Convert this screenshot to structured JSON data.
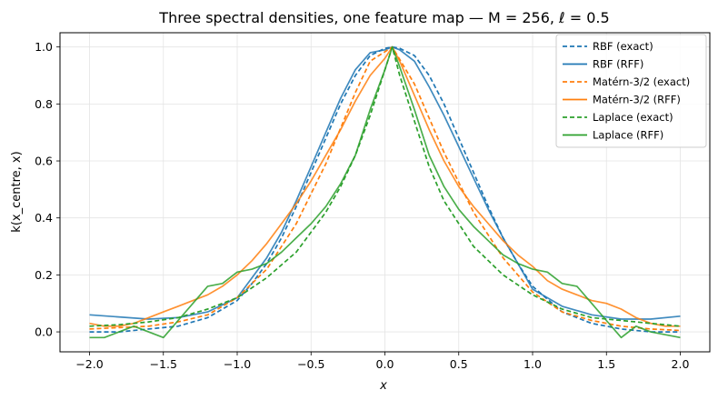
{
  "chart_data": {
    "type": "line",
    "title": "Three spectral densities, one feature map — M = 256, ℓ = 0.5",
    "xlabel": "x",
    "ylabel": "k(x_centre, x)",
    "xlim": [
      -2.2,
      2.2
    ],
    "ylim": [
      -0.07,
      1.05
    ],
    "xticks": [
      -2.0,
      -1.5,
      -1.0,
      -0.5,
      0.0,
      0.5,
      1.0,
      1.5,
      2.0
    ],
    "xtick_labels": [
      "−2.0",
      "−1.5",
      "−1.0",
      "−0.5",
      "0.0",
      "0.5",
      "1.0",
      "1.5",
      "2.0"
    ],
    "yticks": [
      0.0,
      0.2,
      0.4,
      0.6,
      0.8,
      1.0
    ],
    "ytick_labels": [
      "0.0",
      "0.2",
      "0.4",
      "0.6",
      "0.8",
      "1.0"
    ],
    "grid": true,
    "legend_position": "top-right",
    "series": [
      {
        "name": "RBF (exact)",
        "color": "#1f77b4",
        "dash": true,
        "x": [
          -2.0,
          -1.8,
          -1.6,
          -1.4,
          -1.2,
          -1.0,
          -0.9,
          -0.8,
          -0.7,
          -0.6,
          -0.5,
          -0.4,
          -0.3,
          -0.2,
          -0.1,
          0.0,
          0.05,
          0.1,
          0.2,
          0.3,
          0.4,
          0.5,
          0.6,
          0.7,
          0.8,
          0.9,
          1.0,
          1.2,
          1.4,
          1.6,
          1.8,
          2.0
        ],
        "y": [
          0.0,
          0.0,
          0.01,
          0.02,
          0.05,
          0.11,
          0.17,
          0.24,
          0.33,
          0.44,
          0.56,
          0.68,
          0.8,
          0.9,
          0.97,
          0.995,
          1.0,
          0.995,
          0.97,
          0.9,
          0.8,
          0.68,
          0.56,
          0.44,
          0.33,
          0.24,
          0.16,
          0.07,
          0.03,
          0.01,
          0.0,
          0.0
        ]
      },
      {
        "name": "RBF (RFF)",
        "color": "#1f77b4",
        "dash": false,
        "x": [
          -2.0,
          -1.6,
          -1.4,
          -1.2,
          -1.0,
          -0.9,
          -0.8,
          -0.7,
          -0.6,
          -0.5,
          -0.4,
          -0.3,
          -0.2,
          -0.1,
          0.0,
          0.05,
          0.1,
          0.2,
          0.3,
          0.4,
          0.5,
          0.6,
          0.7,
          0.8,
          0.9,
          1.0,
          1.2,
          1.4,
          1.6,
          1.8,
          2.0
        ],
        "y": [
          0.06,
          0.045,
          0.05,
          0.07,
          0.12,
          0.19,
          0.26,
          0.35,
          0.46,
          0.58,
          0.7,
          0.82,
          0.92,
          0.98,
          0.99,
          1.0,
          0.99,
          0.95,
          0.86,
          0.76,
          0.65,
          0.54,
          0.43,
          0.33,
          0.24,
          0.15,
          0.09,
          0.06,
          0.045,
          0.045,
          0.055
        ]
      },
      {
        "name": "Matérn-3/2 (exact)",
        "color": "#ff7f0e",
        "dash": true,
        "x": [
          -2.0,
          -1.8,
          -1.6,
          -1.4,
          -1.2,
          -1.0,
          -0.8,
          -0.6,
          -0.4,
          -0.2,
          -0.1,
          0.05,
          0.2,
          0.4,
          0.6,
          0.8,
          1.0,
          1.2,
          1.4,
          1.6,
          1.8,
          2.0
        ],
        "y": [
          0.01,
          0.015,
          0.02,
          0.035,
          0.06,
          0.12,
          0.22,
          0.38,
          0.59,
          0.84,
          0.95,
          1.0,
          0.87,
          0.63,
          0.42,
          0.26,
          0.14,
          0.07,
          0.04,
          0.02,
          0.01,
          0.005
        ]
      },
      {
        "name": "Matérn-3/2 (RFF)",
        "color": "#ff7f0e",
        "dash": false,
        "x": [
          -2.0,
          -1.9,
          -1.8,
          -1.7,
          -1.6,
          -1.5,
          -1.4,
          -1.3,
          -1.2,
          -1.1,
          -1.0,
          -0.9,
          -0.8,
          -0.7,
          -0.6,
          -0.5,
          -0.4,
          -0.3,
          -0.2,
          -0.1,
          0.0,
          0.05,
          0.1,
          0.2,
          0.3,
          0.4,
          0.5,
          0.6,
          0.7,
          0.8,
          0.9,
          1.0,
          1.1,
          1.2,
          1.3,
          1.4,
          1.5,
          1.6,
          1.7,
          1.8,
          1.9,
          2.0
        ],
        "y": [
          0.03,
          0.02,
          0.02,
          0.03,
          0.05,
          0.07,
          0.09,
          0.11,
          0.13,
          0.16,
          0.2,
          0.25,
          0.31,
          0.38,
          0.45,
          0.53,
          0.62,
          0.71,
          0.81,
          0.9,
          0.96,
          1.0,
          0.95,
          0.83,
          0.71,
          0.6,
          0.51,
          0.44,
          0.38,
          0.32,
          0.27,
          0.23,
          0.18,
          0.15,
          0.13,
          0.11,
          0.1,
          0.08,
          0.05,
          0.03,
          0.02,
          0.02
        ]
      },
      {
        "name": "Laplace (exact)",
        "color": "#2ca02c",
        "dash": true,
        "x": [
          -2.0,
          -1.8,
          -1.6,
          -1.4,
          -1.2,
          -1.0,
          -0.8,
          -0.6,
          -0.4,
          -0.3,
          -0.2,
          -0.1,
          0.05,
          0.1,
          0.2,
          0.3,
          0.4,
          0.6,
          0.8,
          1.0,
          1.2,
          1.4,
          1.6,
          1.8,
          2.0
        ],
        "y": [
          0.02,
          0.025,
          0.035,
          0.05,
          0.08,
          0.12,
          0.19,
          0.28,
          0.42,
          0.51,
          0.62,
          0.76,
          1.0,
          0.9,
          0.74,
          0.58,
          0.46,
          0.3,
          0.2,
          0.13,
          0.08,
          0.05,
          0.04,
          0.03,
          0.02
        ]
      },
      {
        "name": "Laplace (RFF)",
        "color": "#2ca02c",
        "dash": false,
        "x": [
          -2.0,
          -1.9,
          -1.8,
          -1.7,
          -1.6,
          -1.5,
          -1.4,
          -1.3,
          -1.2,
          -1.1,
          -1.0,
          -0.9,
          -0.8,
          -0.7,
          -0.6,
          -0.5,
          -0.4,
          -0.3,
          -0.2,
          -0.1,
          0.0,
          0.05,
          0.1,
          0.2,
          0.3,
          0.4,
          0.5,
          0.6,
          0.7,
          0.8,
          0.9,
          1.0,
          1.1,
          1.2,
          1.3,
          1.4,
          1.5,
          1.6,
          1.7,
          1.8,
          1.9,
          2.0
        ],
        "y": [
          -0.02,
          -0.02,
          0.0,
          0.02,
          0.0,
          -0.02,
          0.04,
          0.1,
          0.16,
          0.17,
          0.21,
          0.22,
          0.24,
          0.28,
          0.33,
          0.38,
          0.44,
          0.52,
          0.62,
          0.78,
          0.92,
          1.0,
          0.93,
          0.78,
          0.62,
          0.51,
          0.43,
          0.37,
          0.32,
          0.27,
          0.24,
          0.22,
          0.21,
          0.17,
          0.16,
          0.1,
          0.04,
          -0.02,
          0.02,
          0.0,
          -0.01,
          -0.02
        ]
      }
    ]
  }
}
